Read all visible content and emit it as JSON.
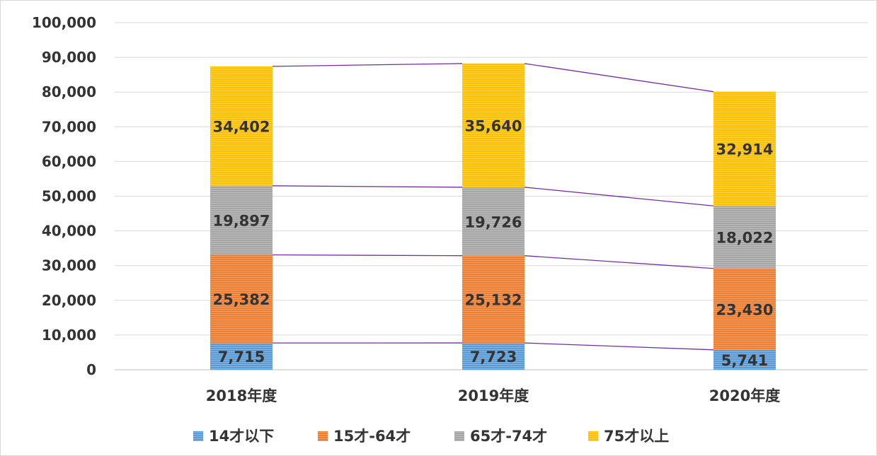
{
  "chart_data": {
    "type": "bar",
    "stacked": true,
    "categories": [
      "2018年度",
      "2019年度",
      "2020年度"
    ],
    "series": [
      {
        "name": "14才以下",
        "values": [
          7715,
          7723,
          5741
        ],
        "color": "#5B9BD5"
      },
      {
        "name": "15才-64才",
        "values": [
          25382,
          25132,
          23430
        ],
        "color": "#ED7D31"
      },
      {
        "name": "65才-74才",
        "values": [
          19897,
          19726,
          18022
        ],
        "color": "#A5A5A5"
      },
      {
        "name": "75才以上",
        "values": [
          34402,
          35640,
          32914
        ],
        "color": "#FFC000"
      }
    ],
    "y_ticks": [
      "0",
      "10,000",
      "20,000",
      "30,000",
      "40,000",
      "50,000",
      "60,000",
      "70,000",
      "80,000",
      "90,000",
      "100,000"
    ],
    "ylim": [
      0,
      100000
    ],
    "grid": true,
    "series_lines": true,
    "series_line_color": "#7030A0",
    "legend_position": "bottom"
  }
}
